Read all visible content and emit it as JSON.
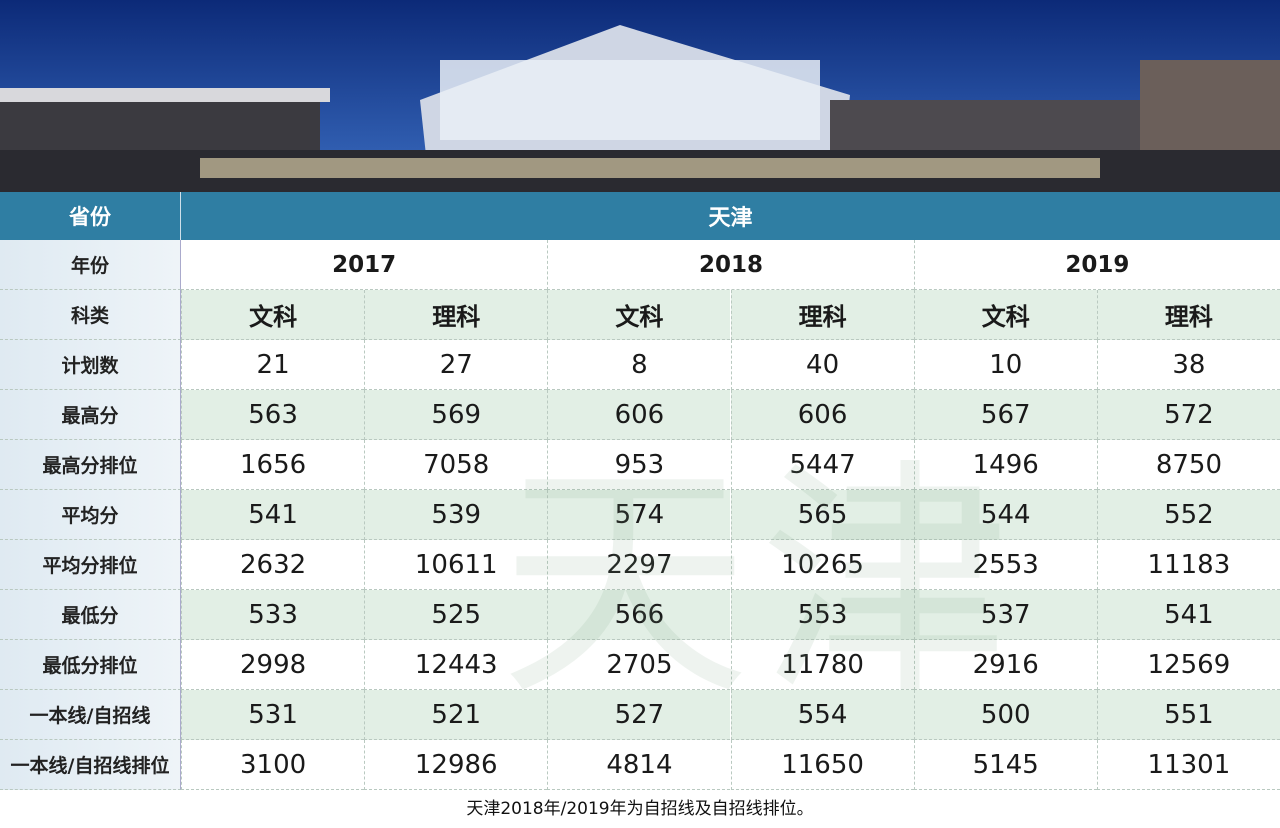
{
  "table": {
    "province_label": "省份",
    "province": "天津",
    "year_label": "年份",
    "years": [
      "2017",
      "2018",
      "2019"
    ],
    "subject_label": "科类",
    "subjects": [
      "文科",
      "理科",
      "文科",
      "理科",
      "文科",
      "理科"
    ],
    "rows": [
      {
        "label": "计划数",
        "values": [
          21,
          27,
          8,
          40,
          10,
          38
        ]
      },
      {
        "label": "最高分",
        "values": [
          563,
          569,
          606,
          606,
          567,
          572
        ]
      },
      {
        "label": "最高分排位",
        "values": [
          1656,
          7058,
          953,
          5447,
          1496,
          8750
        ]
      },
      {
        "label": "平均分",
        "values": [
          541,
          539,
          574,
          565,
          544,
          552
        ]
      },
      {
        "label": "平均分排位",
        "values": [
          2632,
          10611,
          2297,
          10265,
          2553,
          11183
        ]
      },
      {
        "label": "最低分",
        "values": [
          533,
          525,
          566,
          553,
          537,
          541
        ]
      },
      {
        "label": "最低分排位",
        "values": [
          2998,
          12443,
          2705,
          11780,
          2916,
          12569
        ]
      },
      {
        "label": "一本线/自招线",
        "values": [
          531,
          521,
          527,
          554,
          500,
          551
        ]
      },
      {
        "label": "一本线/自招线排位",
        "values": [
          3100,
          12986,
          4814,
          11650,
          5145,
          11301
        ]
      }
    ]
  },
  "note": "天津2018年/2019年为自招线及自招线排位。"
}
